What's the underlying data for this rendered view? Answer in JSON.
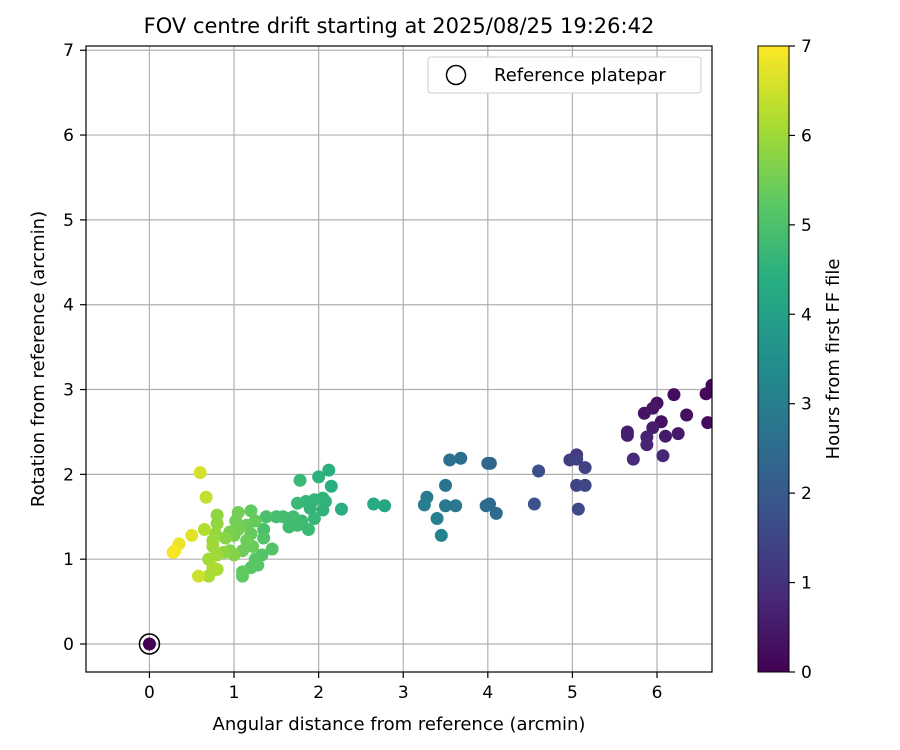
{
  "chart_data": {
    "type": "scatter",
    "title": "FOV centre drift starting at 2025/08/25 19:26:42",
    "xlabel": "Angular distance from reference (arcmin)",
    "ylabel": "Rotation from reference (arcmin)",
    "xlim": [
      -0.75,
      6.65
    ],
    "ylim": [
      -0.33,
      7.05
    ],
    "xticks": [
      "0",
      "1",
      "2",
      "3",
      "4",
      "5",
      "6"
    ],
    "yticks": [
      "0",
      "1",
      "2",
      "3",
      "4",
      "5",
      "6",
      "7"
    ],
    "grid": true,
    "legend": {
      "placement": "top-right",
      "label": "Reference platepar"
    },
    "reference_point": {
      "x": 0,
      "y": 0
    },
    "colorbar": {
      "label": "Hours from first FF file",
      "range": [
        0,
        7
      ],
      "ticks": [
        "0",
        "1",
        "2",
        "3",
        "4",
        "5",
        "6",
        "7"
      ],
      "colormap": "viridis"
    },
    "points": [
      {
        "x": 6.65,
        "y": 3.05,
        "h": 0.1
      },
      {
        "x": 6.58,
        "y": 2.95,
        "h": 0.15
      },
      {
        "x": 6.6,
        "y": 2.61,
        "h": 0.2
      },
      {
        "x": 6.2,
        "y": 2.94,
        "h": 0.25
      },
      {
        "x": 6.35,
        "y": 2.7,
        "h": 0.3
      },
      {
        "x": 6.05,
        "y": 2.62,
        "h": 0.3
      },
      {
        "x": 6.0,
        "y": 2.84,
        "h": 0.35
      },
      {
        "x": 5.85,
        "y": 2.72,
        "h": 0.4
      },
      {
        "x": 5.95,
        "y": 2.78,
        "h": 0.45
      },
      {
        "x": 6.25,
        "y": 2.48,
        "h": 0.5
      },
      {
        "x": 6.1,
        "y": 2.45,
        "h": 0.5
      },
      {
        "x": 5.95,
        "y": 2.55,
        "h": 0.55
      },
      {
        "x": 5.65,
        "y": 2.5,
        "h": 0.6
      },
      {
        "x": 5.65,
        "y": 2.46,
        "h": 0.65
      },
      {
        "x": 5.88,
        "y": 2.44,
        "h": 0.7
      },
      {
        "x": 5.88,
        "y": 2.35,
        "h": 0.75
      },
      {
        "x": 6.07,
        "y": 2.22,
        "h": 0.8
      },
      {
        "x": 5.72,
        "y": 2.18,
        "h": 0.85
      },
      {
        "x": 5.05,
        "y": 2.23,
        "h": 1.2
      },
      {
        "x": 4.97,
        "y": 2.17,
        "h": 1.3
      },
      {
        "x": 5.05,
        "y": 2.18,
        "h": 1.35
      },
      {
        "x": 5.15,
        "y": 2.08,
        "h": 1.4
      },
      {
        "x": 5.05,
        "y": 1.87,
        "h": 1.45
      },
      {
        "x": 5.15,
        "y": 1.87,
        "h": 1.5
      },
      {
        "x": 5.07,
        "y": 1.59,
        "h": 1.6
      },
      {
        "x": 4.6,
        "y": 2.04,
        "h": 1.7
      },
      {
        "x": 4.55,
        "y": 1.65,
        "h": 1.8
      },
      {
        "x": 4.03,
        "y": 2.13,
        "h": 2.3
      },
      {
        "x": 4.0,
        "y": 2.13,
        "h": 2.35
      },
      {
        "x": 4.02,
        "y": 1.65,
        "h": 2.4
      },
      {
        "x": 4.1,
        "y": 1.54,
        "h": 2.45
      },
      {
        "x": 3.98,
        "y": 1.63,
        "h": 2.5
      },
      {
        "x": 3.68,
        "y": 2.19,
        "h": 2.55
      },
      {
        "x": 3.55,
        "y": 2.17,
        "h": 2.6
      },
      {
        "x": 3.5,
        "y": 1.87,
        "h": 2.7
      },
      {
        "x": 3.62,
        "y": 1.63,
        "h": 2.8
      },
      {
        "x": 3.5,
        "y": 1.63,
        "h": 2.85
      },
      {
        "x": 3.28,
        "y": 1.73,
        "h": 2.9
      },
      {
        "x": 3.25,
        "y": 1.64,
        "h": 3.0
      },
      {
        "x": 3.4,
        "y": 1.48,
        "h": 3.05
      },
      {
        "x": 3.45,
        "y": 1.28,
        "h": 3.1
      },
      {
        "x": 2.78,
        "y": 1.63,
        "h": 4.2
      },
      {
        "x": 2.65,
        "y": 1.65,
        "h": 4.3
      },
      {
        "x": 2.27,
        "y": 1.59,
        "h": 4.4
      },
      {
        "x": 2.15,
        "y": 1.86,
        "h": 4.4
      },
      {
        "x": 2.12,
        "y": 2.05,
        "h": 4.45
      },
      {
        "x": 2.08,
        "y": 1.68,
        "h": 4.5
      },
      {
        "x": 2.0,
        "y": 1.97,
        "h": 4.5
      },
      {
        "x": 2.05,
        "y": 1.72,
        "h": 4.55
      },
      {
        "x": 2.05,
        "y": 1.58,
        "h": 4.55
      },
      {
        "x": 1.95,
        "y": 1.7,
        "h": 4.6
      },
      {
        "x": 1.9,
        "y": 1.6,
        "h": 4.6
      },
      {
        "x": 1.95,
        "y": 1.48,
        "h": 4.65
      },
      {
        "x": 1.85,
        "y": 1.68,
        "h": 4.65
      },
      {
        "x": 1.78,
        "y": 1.93,
        "h": 4.7
      },
      {
        "x": 1.75,
        "y": 1.66,
        "h": 4.7
      },
      {
        "x": 1.8,
        "y": 1.45,
        "h": 4.75
      },
      {
        "x": 1.88,
        "y": 1.35,
        "h": 4.75
      },
      {
        "x": 1.75,
        "y": 1.4,
        "h": 4.8
      },
      {
        "x": 1.65,
        "y": 1.38,
        "h": 4.8
      },
      {
        "x": 1.7,
        "y": 1.5,
        "h": 4.85
      },
      {
        "x": 1.58,
        "y": 1.5,
        "h": 4.85
      },
      {
        "x": 1.5,
        "y": 1.5,
        "h": 4.9
      },
      {
        "x": 1.38,
        "y": 1.5,
        "h": 4.95
      },
      {
        "x": 1.35,
        "y": 1.35,
        "h": 5.0
      },
      {
        "x": 1.35,
        "y": 1.25,
        "h": 5.05
      },
      {
        "x": 1.45,
        "y": 1.12,
        "h": 5.1
      },
      {
        "x": 1.33,
        "y": 1.05,
        "h": 5.1
      },
      {
        "x": 1.28,
        "y": 0.93,
        "h": 5.15
      },
      {
        "x": 1.2,
        "y": 0.9,
        "h": 5.2
      },
      {
        "x": 1.25,
        "y": 1.0,
        "h": 5.2
      },
      {
        "x": 1.1,
        "y": 0.8,
        "h": 5.25
      },
      {
        "x": 1.1,
        "y": 0.85,
        "h": 5.3
      },
      {
        "x": 1.2,
        "y": 1.57,
        "h": 5.3
      },
      {
        "x": 1.25,
        "y": 1.45,
        "h": 5.35
      },
      {
        "x": 1.2,
        "y": 1.3,
        "h": 5.35
      },
      {
        "x": 1.15,
        "y": 1.4,
        "h": 5.4
      },
      {
        "x": 1.22,
        "y": 1.15,
        "h": 5.4
      },
      {
        "x": 1.15,
        "y": 1.22,
        "h": 5.45
      },
      {
        "x": 1.1,
        "y": 1.1,
        "h": 5.45
      },
      {
        "x": 1.05,
        "y": 1.55,
        "h": 5.5
      },
      {
        "x": 1.02,
        "y": 1.45,
        "h": 5.5
      },
      {
        "x": 1.0,
        "y": 1.28,
        "h": 5.55
      },
      {
        "x": 1.05,
        "y": 1.35,
        "h": 5.55
      },
      {
        "x": 0.95,
        "y": 1.32,
        "h": 5.6
      },
      {
        "x": 0.95,
        "y": 1.1,
        "h": 5.65
      },
      {
        "x": 1.0,
        "y": 1.05,
        "h": 5.7
      },
      {
        "x": 0.9,
        "y": 1.25,
        "h": 5.75
      },
      {
        "x": 0.88,
        "y": 1.08,
        "h": 5.8
      },
      {
        "x": 0.8,
        "y": 1.52,
        "h": 5.85
      },
      {
        "x": 0.8,
        "y": 1.42,
        "h": 5.85
      },
      {
        "x": 0.78,
        "y": 1.3,
        "h": 5.9
      },
      {
        "x": 0.75,
        "y": 1.22,
        "h": 5.95
      },
      {
        "x": 0.75,
        "y": 1.15,
        "h": 6.0
      },
      {
        "x": 0.8,
        "y": 1.05,
        "h": 6.0
      },
      {
        "x": 0.7,
        "y": 1.0,
        "h": 6.05
      },
      {
        "x": 0.7,
        "y": 0.8,
        "h": 6.1
      },
      {
        "x": 0.8,
        "y": 0.88,
        "h": 6.1
      },
      {
        "x": 0.75,
        "y": 0.9,
        "h": 6.15
      },
      {
        "x": 0.65,
        "y": 1.35,
        "h": 6.2
      },
      {
        "x": 0.67,
        "y": 1.73,
        "h": 6.4
      },
      {
        "x": 0.58,
        "y": 0.8,
        "h": 6.5
      },
      {
        "x": 0.6,
        "y": 2.02,
        "h": 6.55
      },
      {
        "x": 0.5,
        "y": 1.28,
        "h": 6.7
      },
      {
        "x": 0.35,
        "y": 1.18,
        "h": 6.8
      },
      {
        "x": 0.3,
        "y": 1.1,
        "h": 6.9
      },
      {
        "x": 0.28,
        "y": 1.08,
        "h": 6.95
      },
      {
        "x": 0,
        "y": 0,
        "h": 0
      }
    ]
  }
}
